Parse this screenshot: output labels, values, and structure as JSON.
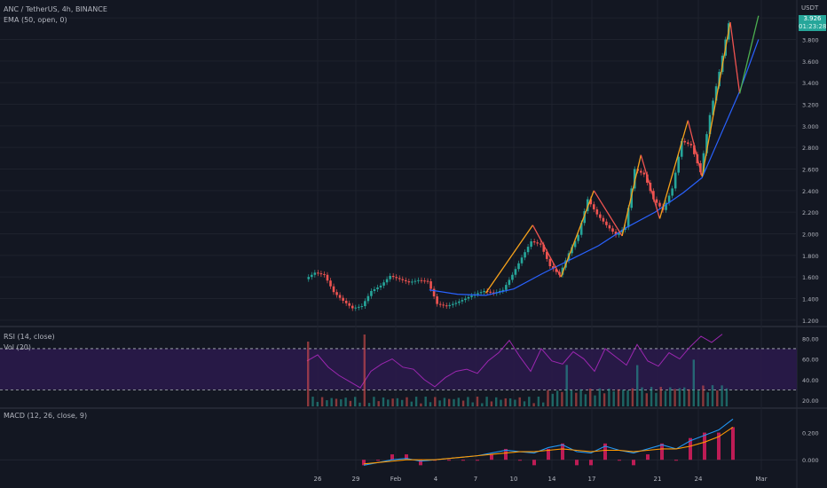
{
  "header": {
    "symbol_title": "ANC / TetherUS, 4h, BINANCE",
    "ema_label": "EMA (50, open, 0)",
    "rsi_label": "RSI (14, close)",
    "vol_label": "Vol (20)",
    "macd_label": "MACD (12, 26, close, 9)",
    "currency": "USDT",
    "price_badge": "3.926",
    "countdown_badge": "01:23:28"
  },
  "colors": {
    "background": "#131722",
    "up_candle": "#26a69a",
    "down_candle": "#ef5350",
    "ema": "#2962ff",
    "zigzag_up": "#f7a21b",
    "rsi_band": "#2a1a4a",
    "rsi_line": "#9c27b0",
    "macd_line": "#2196f3",
    "signal_line": "#ff9800",
    "hist": "#e91e63"
  },
  "chart_data": [
    {
      "type": "candlestick",
      "title": "ANC / TetherUS, 4h, BINANCE",
      "x_ticks": [
        "26",
        "29",
        "Feb",
        "4",
        "7",
        "10",
        "14",
        "17",
        "21",
        "24",
        "Mar"
      ],
      "y_ticks": [
        "1.200",
        "1.400",
        "1.600",
        "1.800",
        "2.000",
        "2.200",
        "2.400",
        "2.600",
        "2.800",
        "3.000",
        "3.200",
        "3.400",
        "3.600",
        "3.800",
        "4"
      ],
      "ylim": [
        1.1,
        4.1
      ],
      "close_series": [
        {
          "x": 0,
          "y": 1.58
        },
        {
          "x": 2,
          "y": 1.64
        },
        {
          "x": 4,
          "y": 1.62
        },
        {
          "x": 6,
          "y": 1.46
        },
        {
          "x": 8,
          "y": 1.38
        },
        {
          "x": 10,
          "y": 1.31
        },
        {
          "x": 12,
          "y": 1.33
        },
        {
          "x": 14,
          "y": 1.47
        },
        {
          "x": 16,
          "y": 1.52
        },
        {
          "x": 18,
          "y": 1.61
        },
        {
          "x": 20,
          "y": 1.58
        },
        {
          "x": 22,
          "y": 1.55
        },
        {
          "x": 24,
          "y": 1.57
        },
        {
          "x": 26,
          "y": 1.56
        },
        {
          "x": 28,
          "y": 1.35
        },
        {
          "x": 30,
          "y": 1.33
        },
        {
          "x": 32,
          "y": 1.36
        },
        {
          "x": 34,
          "y": 1.4
        },
        {
          "x": 36,
          "y": 1.44
        },
        {
          "x": 38,
          "y": 1.47
        },
        {
          "x": 40,
          "y": 1.45
        },
        {
          "x": 42,
          "y": 1.48
        },
        {
          "x": 44,
          "y": 1.62
        },
        {
          "x": 46,
          "y": 1.78
        },
        {
          "x": 48,
          "y": 1.93
        },
        {
          "x": 50,
          "y": 1.9
        },
        {
          "x": 52,
          "y": 1.7
        },
        {
          "x": 54,
          "y": 1.62
        },
        {
          "x": 56,
          "y": 1.82
        },
        {
          "x": 58,
          "y": 1.99
        },
        {
          "x": 60,
          "y": 2.32
        },
        {
          "x": 62,
          "y": 2.18
        },
        {
          "x": 64,
          "y": 2.08
        },
        {
          "x": 66,
          "y": 1.99
        },
        {
          "x": 68,
          "y": 2.06
        },
        {
          "x": 70,
          "y": 2.6
        },
        {
          "x": 72,
          "y": 2.55
        },
        {
          "x": 74,
          "y": 2.32
        },
        {
          "x": 76,
          "y": 2.22
        },
        {
          "x": 78,
          "y": 2.42
        },
        {
          "x": 80,
          "y": 2.86
        },
        {
          "x": 82,
          "y": 2.82
        },
        {
          "x": 84,
          "y": 2.57
        },
        {
          "x": 86,
          "y": 3.1
        },
        {
          "x": 88,
          "y": 3.5
        },
        {
          "x": 90,
          "y": 3.95
        }
      ],
      "ema_series": [
        {
          "x": 26,
          "y": 1.48
        },
        {
          "x": 32,
          "y": 1.44
        },
        {
          "x": 38,
          "y": 1.43
        },
        {
          "x": 44,
          "y": 1.49
        },
        {
          "x": 50,
          "y": 1.63
        },
        {
          "x": 56,
          "y": 1.76
        },
        {
          "x": 62,
          "y": 1.89
        },
        {
          "x": 68,
          "y": 2.06
        },
        {
          "x": 74,
          "y": 2.2
        },
        {
          "x": 80,
          "y": 2.38
        },
        {
          "x": 84,
          "y": 2.52
        },
        {
          "x": 88,
          "y": 2.92
        },
        {
          "x": 92,
          "y": 3.32
        },
        {
          "x": 96,
          "y": 3.8
        }
      ],
      "zigzag": [
        {
          "x": 38,
          "y": 1.45
        },
        {
          "x": 48,
          "y": 2.08
        },
        {
          "x": 54,
          "y": 1.6
        },
        {
          "x": 61,
          "y": 2.4
        },
        {
          "x": 67,
          "y": 1.98
        },
        {
          "x": 71,
          "y": 2.73
        },
        {
          "x": 75,
          "y": 2.14
        },
        {
          "x": 81,
          "y": 3.05
        },
        {
          "x": 84,
          "y": 2.53
        },
        {
          "x": 90,
          "y": 3.96
        },
        {
          "x": 92,
          "y": 3.3
        },
        {
          "x": 96,
          "y": 4.02
        }
      ]
    },
    {
      "type": "line",
      "title": "RSI (14, close)",
      "y_ticks": [
        "20.00",
        "40.00",
        "60.00",
        "80.00"
      ],
      "ylim": [
        14,
        88
      ],
      "bands": [
        30,
        70
      ],
      "series": [
        {
          "values": [
            58,
            64,
            52,
            44,
            38,
            32,
            48,
            55,
            60,
            52,
            50,
            40,
            33,
            42,
            48,
            50,
            46,
            58,
            66,
            78,
            62,
            48,
            70,
            58,
            55,
            67,
            60,
            48,
            70,
            62,
            54,
            74,
            58,
            53,
            66,
            60,
            72,
            82,
            76,
            84
          ]
        }
      ]
    },
    {
      "type": "line",
      "title": "MACD (12, 26, close, 9)",
      "y_ticks": [
        "0.000",
        "0.200"
      ],
      "ylim": [
        -0.09,
        0.38
      ],
      "series": [
        {
          "name": "MACD",
          "values": [
            -0.04,
            -0.02,
            0.0,
            0.01,
            -0.01,
            0.0,
            0.01,
            0.02,
            0.03,
            0.05,
            0.07,
            0.06,
            0.05,
            0.09,
            0.11,
            0.06,
            0.05,
            0.1,
            0.07,
            0.05,
            0.08,
            0.11,
            0.08,
            0.14,
            0.18,
            0.22,
            0.3
          ]
        },
        {
          "name": "Signal",
          "values": [
            -0.03,
            -0.02,
            -0.01,
            0.0,
            0.0,
            0.0,
            0.01,
            0.02,
            0.03,
            0.04,
            0.05,
            0.06,
            0.06,
            0.07,
            0.08,
            0.07,
            0.06,
            0.07,
            0.07,
            0.06,
            0.07,
            0.08,
            0.08,
            0.1,
            0.13,
            0.17,
            0.24
          ]
        }
      ]
    }
  ]
}
